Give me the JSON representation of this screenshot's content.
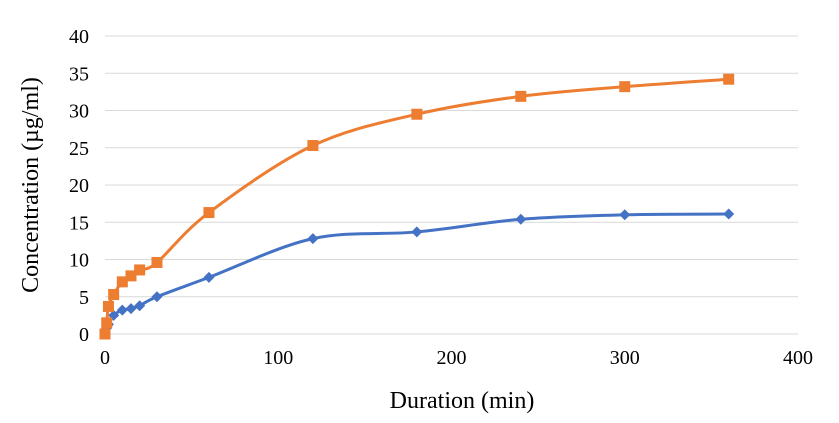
{
  "chart_data": {
    "type": "line",
    "title": "",
    "xlabel": "Duration (min)",
    "ylabel": "Concentration (µg/ml)",
    "xlim": [
      0,
      400
    ],
    "ylim": [
      0,
      40
    ],
    "x_ticks": [
      "0",
      "100",
      "200",
      "300",
      "400"
    ],
    "y_ticks": [
      "0",
      "5",
      "10",
      "15",
      "20",
      "25",
      "30",
      "35",
      "40"
    ],
    "grid": "horizontal",
    "legend": "none",
    "series": [
      {
        "color": "#4472c4",
        "marker": "diamond",
        "x": [
          0,
          1,
          2,
          5,
          10,
          15,
          20,
          30,
          60,
          120,
          180,
          240,
          300,
          360
        ],
        "y": [
          0.0,
          0.8,
          1.3,
          2.5,
          3.2,
          3.4,
          3.8,
          5.0,
          7.6,
          12.8,
          13.7,
          15.4,
          16.0,
          16.1
        ]
      },
      {
        "color": "#ed7d31",
        "marker": "square",
        "x": [
          0,
          1,
          2,
          5,
          10,
          15,
          20,
          30,
          60,
          120,
          180,
          240,
          300,
          360
        ],
        "y": [
          0.0,
          1.5,
          3.7,
          5.3,
          7.0,
          7.8,
          8.6,
          9.6,
          16.3,
          25.3,
          29.5,
          31.9,
          33.2,
          34.2
        ]
      }
    ]
  }
}
